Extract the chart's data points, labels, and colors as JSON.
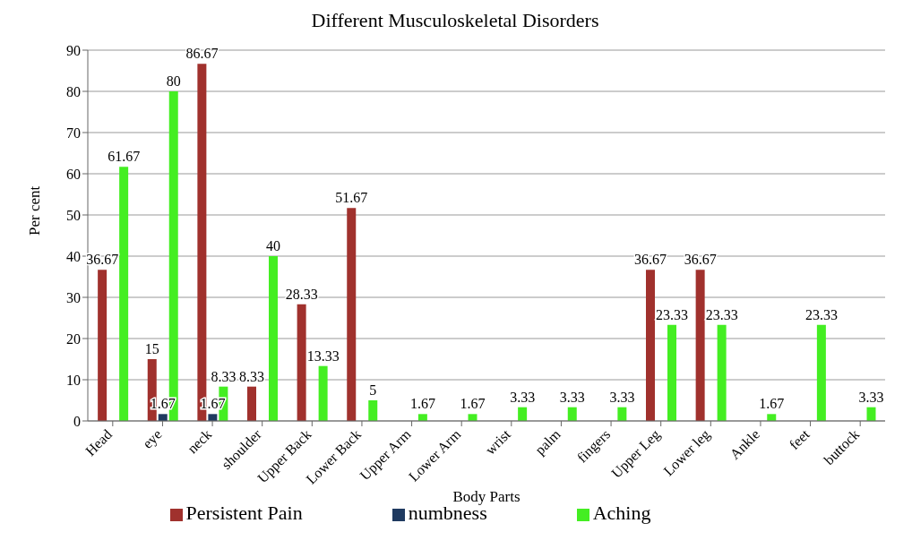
{
  "chart_data": {
    "type": "bar",
    "title": "Different Musculoskeletal Disorders",
    "xlabel": "Body Parts",
    "ylabel": "Per cent",
    "categories": [
      "Head",
      "eye",
      "neck",
      "shoulder",
      "Upper Back",
      "Lower Back",
      "Upper Arm",
      "Lower Arm",
      "wrist",
      "palm",
      "fingers",
      "Upper Leg",
      "Lower leg",
      "Ankle",
      "feet",
      "buttock"
    ],
    "series": [
      {
        "name": "Persistent Pain",
        "color": "#a0312d",
        "values": [
          36.67,
          15,
          86.67,
          8.33,
          28.33,
          51.67,
          null,
          null,
          null,
          null,
          null,
          36.67,
          36.67,
          null,
          null,
          null
        ]
      },
      {
        "name": "numbness",
        "color": "#1f3a60",
        "values": [
          null,
          1.67,
          1.67,
          null,
          null,
          null,
          null,
          null,
          null,
          null,
          null,
          null,
          null,
          null,
          null,
          null
        ]
      },
      {
        "name": "Aching",
        "color": "#44ee22",
        "values": [
          61.67,
          80,
          8.33,
          40,
          13.33,
          5,
          1.67,
          1.67,
          3.33,
          3.33,
          3.33,
          23.33,
          23.33,
          1.67,
          23.33,
          3.33
        ]
      }
    ],
    "ylim": [
      0,
      90
    ],
    "yticks": [
      0,
      10,
      20,
      30,
      40,
      50,
      60,
      70,
      80,
      90
    ],
    "grid": "y",
    "legend": "bottom",
    "data_labels": true
  }
}
